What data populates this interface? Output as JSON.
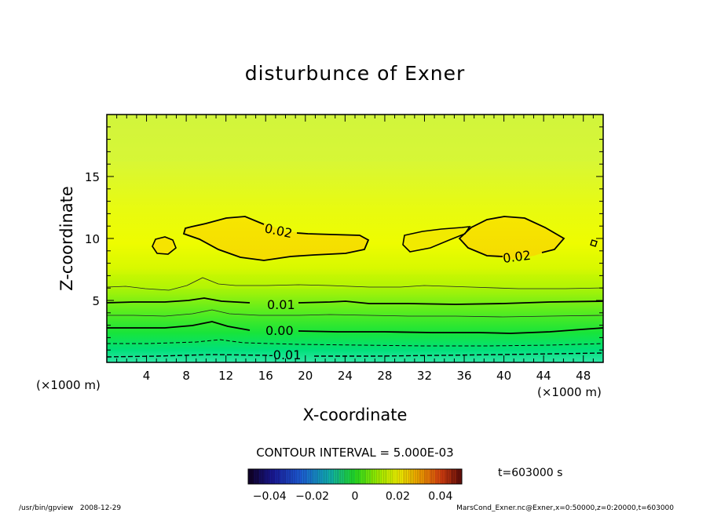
{
  "chart_data": {
    "type": "contour",
    "title": "disturbunce of Exner",
    "xlabel": "X-coordinate",
    "ylabel": "Z-coordinate",
    "x_unit_label": "(×1000 m)",
    "z_unit_label": "(×1000 m)",
    "xlim": [
      0,
      50
    ],
    "ylim": [
      0,
      20
    ],
    "x_ticks": [
      4,
      8,
      12,
      16,
      20,
      24,
      28,
      32,
      36,
      40,
      44,
      48
    ],
    "y_ticks": [
      5,
      10,
      15
    ],
    "contour_levels": [
      {
        "level": 0.02,
        "label": "0.02"
      },
      {
        "level": 0.01,
        "label": "0.01"
      },
      {
        "level": 0.0,
        "label": "0.00"
      },
      {
        "level": -0.01,
        "label": "-0.01"
      }
    ],
    "contour_interval_text": "CONTOUR INTERVAL = 5.000E-03",
    "colorbar": {
      "min": -0.05,
      "max": 0.05,
      "tick_values": [
        -0.04,
        -0.02,
        0,
        0.02,
        0.04
      ],
      "tick_labels": [
        "−0.04",
        "−0.02",
        "0",
        "0.02",
        "0.04"
      ]
    },
    "time_label": "t=603000 s",
    "footer_left": "/usr/bin/gpview   2008-12-29",
    "footer_right": "MarsCond_Exner.nc@Exner,x=0:50000,z=0:20000,t=603000"
  }
}
